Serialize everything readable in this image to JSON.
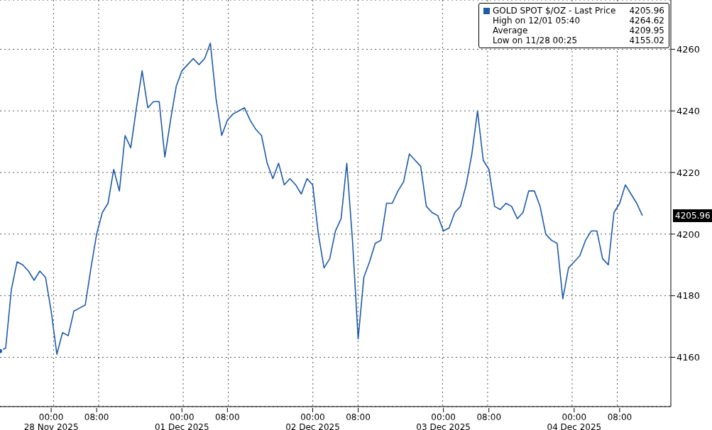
{
  "chart_data": {
    "type": "line",
    "legend": "top right",
    "grid": true,
    "marker": "none",
    "line_style": "solid",
    "categories": [
      null,
      null,
      null,
      null,
      null,
      null,
      null,
      null,
      null,
      "00:00\n28 Nov 2025",
      null,
      null,
      null,
      null,
      null,
      null,
      null,
      "08:00",
      null,
      null,
      null,
      null,
      null,
      null,
      null,
      null,
      null,
      null,
      null,
      null,
      null,
      null,
      "00:00\n01 Dec 2025",
      null,
      null,
      null,
      null,
      null,
      null,
      null,
      "08:00",
      null,
      null,
      null,
      null,
      null,
      null,
      null,
      null,
      null,
      null,
      null,
      null,
      null,
      null,
      "00:00\n02 Dec 2025",
      null,
      null,
      null,
      null,
      null,
      null,
      null,
      "08:00",
      null,
      null,
      null,
      null,
      null,
      null,
      null,
      null,
      null,
      null,
      null,
      null,
      null,
      null,
      "00:00\n03 Dec 2025",
      null,
      null,
      null,
      null,
      null,
      null,
      null,
      "08:00",
      null,
      null,
      null,
      null,
      null,
      null,
      null,
      null,
      null,
      null,
      null,
      null,
      null,
      null,
      "00:00\n04 Dec 2025",
      null,
      null,
      null,
      null,
      null,
      null,
      null,
      "08:00",
      null,
      null,
      null,
      null,
      null,
      null,
      null,
      null,
      null
    ],
    "series": [
      {
        "name": "GOLD SPOT $/OZ - Last Price",
        "color": "#1e5aa8",
        "values": [
          4162,
          4163,
          4182,
          4191,
          4190,
          4188,
          4185,
          4188,
          4186,
          4175,
          4161,
          4168,
          4167,
          4175,
          4176,
          4177,
          4189,
          4200,
          4207,
          4210,
          4221,
          4214,
          4232,
          4228,
          4241,
          4253,
          4241,
          4243,
          4243,
          4225,
          4237,
          4248,
          4253,
          4255,
          4257,
          4255,
          4257,
          4262,
          4244,
          4232,
          4237,
          4239,
          4240,
          4241,
          4237,
          4234,
          4232,
          4223,
          4218,
          4223,
          4216,
          4218,
          4216,
          4213,
          4218,
          4216,
          4200,
          4189,
          4192,
          4201,
          4205,
          4223,
          4198,
          4166,
          4186,
          4191,
          4197,
          4198,
          4210,
          4210,
          4214,
          4217,
          4226,
          4224,
          4222,
          4209,
          4207,
          4206,
          4201,
          4202,
          4207,
          4209,
          4216,
          4226,
          4240,
          4224,
          4221,
          4209,
          4208,
          4210,
          4209,
          4205,
          4207,
          4214,
          4214,
          4209,
          4200,
          4198,
          4197,
          4179,
          4189,
          4191,
          4193,
          4198,
          4201,
          4201,
          4192,
          4190,
          4207,
          4210,
          4216,
          4213,
          4210,
          4206,
          null,
          null,
          null,
          null,
          null
        ]
      }
    ],
    "ylim": [
      4144,
      4276
    ],
    "yticks": [
      4160,
      4180,
      4200,
      4220,
      4240,
      4260
    ],
    "annotations": [
      "4205.96",
      "High on 12/01 05:40",
      "4264.62",
      "Average",
      "4209.95",
      "Low on 11/28 00:25",
      "4155.02",
      "4205.96"
    ]
  }
}
